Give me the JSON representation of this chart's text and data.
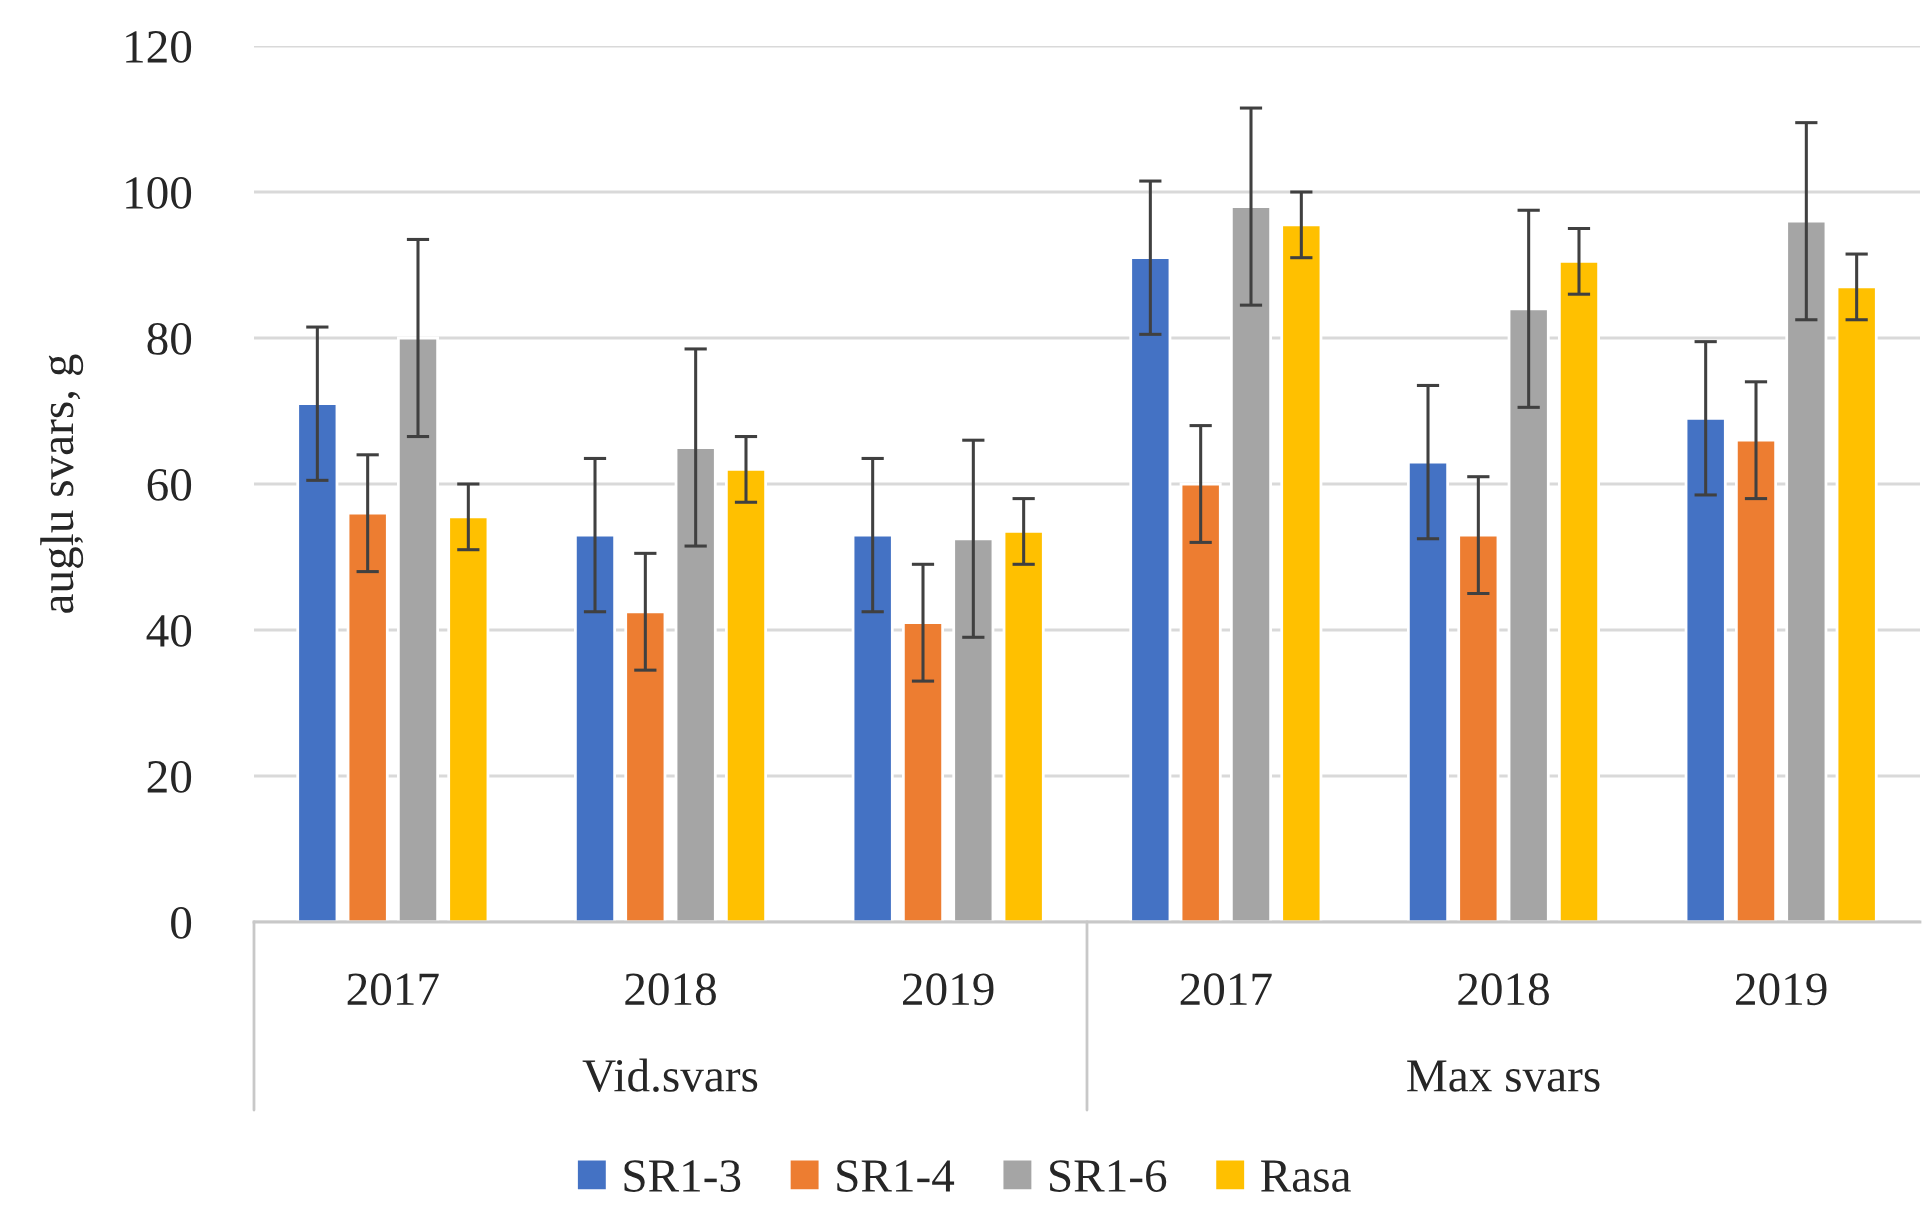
{
  "chart_data": {
    "type": "bar",
    "ylabel": "augļu svars, g",
    "categories": [
      "2017",
      "2018",
      "2019",
      "2017",
      "2018",
      "2019"
    ],
    "annotations": [
      "Vid.svars",
      "Max svars"
    ],
    "series": [
      {
        "name": "SR1-3",
        "color": "#4472c4",
        "values": [
          71,
          53,
          53,
          91,
          63,
          69
        ],
        "errors": [
          10.5,
          10.5,
          10.5,
          10.5,
          10.5,
          10.5
        ]
      },
      {
        "name": "SR1-4",
        "color": "#ed7d31",
        "values": [
          56,
          42.5,
          41,
          60,
          53,
          66
        ],
        "errors": [
          8,
          8,
          8,
          8,
          8,
          8
        ]
      },
      {
        "name": "SR1-6",
        "color": "#a5a5a5",
        "values": [
          80,
          65,
          52.5,
          98,
          84,
          96
        ],
        "errors": [
          13.5,
          13.5,
          13.5,
          13.5,
          13.5,
          13.5
        ]
      },
      {
        "name": "Rasa",
        "color": "#ffc000",
        "values": [
          55.5,
          62,
          53.5,
          95.5,
          90.5,
          87
        ],
        "errors": [
          4.5,
          4.5,
          4.5,
          4.5,
          4.5,
          4.5
        ]
      }
    ],
    "ylim": [
      0,
      120
    ],
    "yticks": [
      0,
      20,
      40,
      60,
      80,
      100,
      120
    ],
    "grid": "y",
    "legend": "bottom"
  }
}
